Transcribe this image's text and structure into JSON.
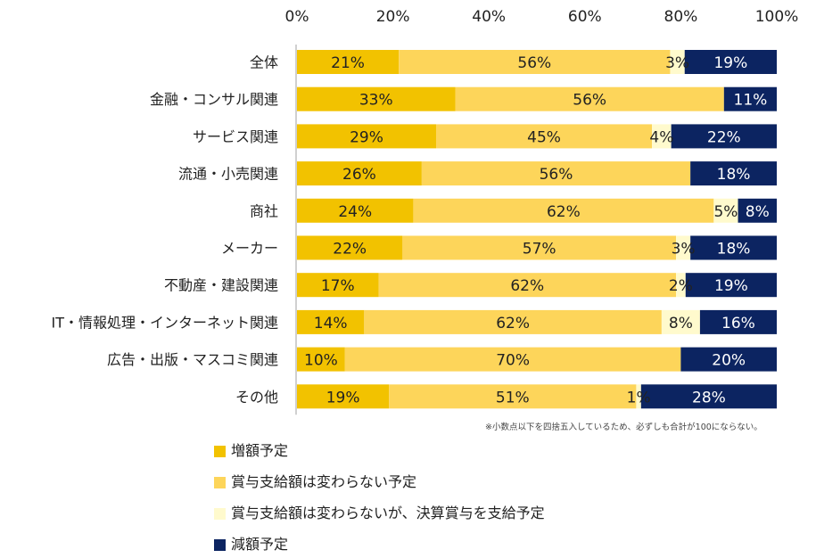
{
  "chart_data": {
    "type": "bar",
    "orientation": "horizontal",
    "stacked": true,
    "title": "",
    "xlabel": "",
    "ylabel": "",
    "xlim": [
      0,
      100
    ],
    "x_ticks": [
      "0%",
      "20%",
      "40%",
      "60%",
      "80%",
      "100%"
    ],
    "x_tick_values": [
      0,
      20,
      40,
      60,
      80,
      100
    ],
    "grid": false,
    "legend_position": "bottom",
    "categories": [
      "全体",
      "金融・コンサル関連",
      "サービス関連",
      "流通・小売関連",
      "商社",
      "メーカー",
      "不動産・建設関連",
      "IT・情報処理・インターネット関連",
      "広告・出版・マスコミ関連",
      "その他"
    ],
    "series": [
      {
        "name": "増額予定",
        "color": "#F2C200",
        "label_color": "#222222",
        "values": [
          21,
          33,
          29,
          26,
          24,
          22,
          17,
          14,
          10,
          19
        ]
      },
      {
        "name": "賞与支給額は変わらない予定",
        "color": "#FDD55A",
        "label_color": "#222222",
        "values": [
          56,
          56,
          45,
          56,
          62,
          57,
          62,
          62,
          70,
          51
        ]
      },
      {
        "name": "賞与支給額は変わらないが、決算賞与を支給予定",
        "color": "#FFFACD",
        "label_color": "#222222",
        "values": [
          3,
          0,
          4,
          0,
          5,
          3,
          2,
          8,
          0,
          1
        ]
      },
      {
        "name": "減額予定",
        "color": "#0C2461",
        "label_color": "#FFFFFF",
        "values": [
          19,
          11,
          22,
          18,
          8,
          18,
          19,
          16,
          20,
          28
        ]
      }
    ],
    "data_labels": [
      [
        "21%",
        "56%",
        "3%",
        "19%"
      ],
      [
        "33%",
        "56%",
        "",
        "11%"
      ],
      [
        "29%",
        "45%",
        "4%",
        "22%"
      ],
      [
        "26%",
        "56%",
        "",
        "18%"
      ],
      [
        "24%",
        "62%",
        "5%",
        "8%"
      ],
      [
        "22%",
        "57%",
        "3%",
        "18%"
      ],
      [
        "17%",
        "62%",
        "2%",
        "19%"
      ],
      [
        "14%",
        "62%",
        "8%",
        "16%"
      ],
      [
        "10%",
        "70%",
        "",
        "20%"
      ],
      [
        "19%",
        "51%",
        "1%",
        "28%"
      ]
    ],
    "annotations": [
      "※小数点以下を四捨五入しているため、必ずしも合計が100にならない。"
    ]
  },
  "footnote": "※小数点以下を四捨五入しているため、必ずしも合計が100にならない。",
  "legend": [
    {
      "label": "増額予定",
      "color": "#F2C200"
    },
    {
      "label": "賞与支給額は変わらない予定",
      "color": "#FDD55A"
    },
    {
      "label": "賞与支給額は変わらないが、決算賞与を支給予定",
      "color": "#FFFACD"
    },
    {
      "label": "減額予定",
      "color": "#0C2461"
    }
  ]
}
